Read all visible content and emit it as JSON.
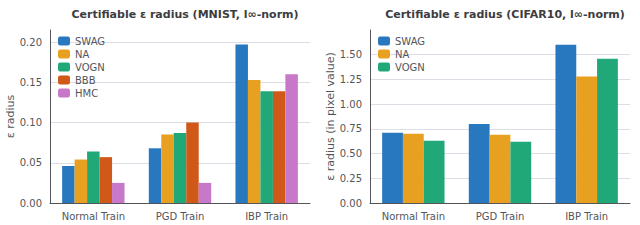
{
  "chart_data": [
    {
      "type": "bar",
      "title": "Certifiable ε radius (MNIST, l∞-norm)",
      "ylabel": "ε radius",
      "categories": [
        "Normal Train",
        "PGD Train",
        "IBP Train"
      ],
      "series": [
        {
          "name": "SWAG",
          "color": "#2878c0",
          "values": [
            0.046,
            0.068,
            0.197
          ]
        },
        {
          "name": "NA",
          "color": "#e8a020",
          "values": [
            0.054,
            0.085,
            0.153
          ]
        },
        {
          "name": "VOGN",
          "color": "#20a878",
          "values": [
            0.064,
            0.087,
            0.139
          ]
        },
        {
          "name": "BBB",
          "color": "#d05818",
          "values": [
            0.057,
            0.1,
            0.139
          ]
        },
        {
          "name": "HMC",
          "color": "#c878c8",
          "values": [
            0.025,
            0.025,
            0.16
          ]
        }
      ],
      "ylim": [
        0,
        0.215
      ],
      "yticks": [
        {
          "value": 0,
          "label": "0.00"
        },
        0.05,
        {
          "value": 0.1,
          "label": "0.10"
        },
        0.15,
        {
          "value": 0.2,
          "label": "0.20"
        }
      ],
      "grid": true,
      "legend": "upper left"
    },
    {
      "type": "bar",
      "title": "Certifiable ε radius (CIFAR10, l∞-norm)",
      "ylabel": "ε radius (in pixel value)",
      "categories": [
        "Normal Train",
        "PGD Train",
        "IBP Train"
      ],
      "series": [
        {
          "name": "SWAG",
          "color": "#2878c0",
          "values": [
            0.71,
            0.8,
            1.6
          ]
        },
        {
          "name": "NA",
          "color": "#e8a020",
          "values": [
            0.7,
            0.69,
            1.28
          ]
        },
        {
          "name": "VOGN",
          "color": "#20a878",
          "values": [
            0.63,
            0.62,
            1.46
          ]
        }
      ],
      "ylim": [
        0,
        1.75
      ],
      "yticks": [
        {
          "value": 0,
          "label": "0.00"
        },
        0.25,
        {
          "value": 0.5,
          "label": "0.50"
        },
        0.75,
        {
          "value": 1,
          "label": "1.00"
        },
        1.25,
        {
          "value": 1.5,
          "label": "1.50"
        }
      ],
      "grid": true,
      "legend": "upper left"
    }
  ]
}
